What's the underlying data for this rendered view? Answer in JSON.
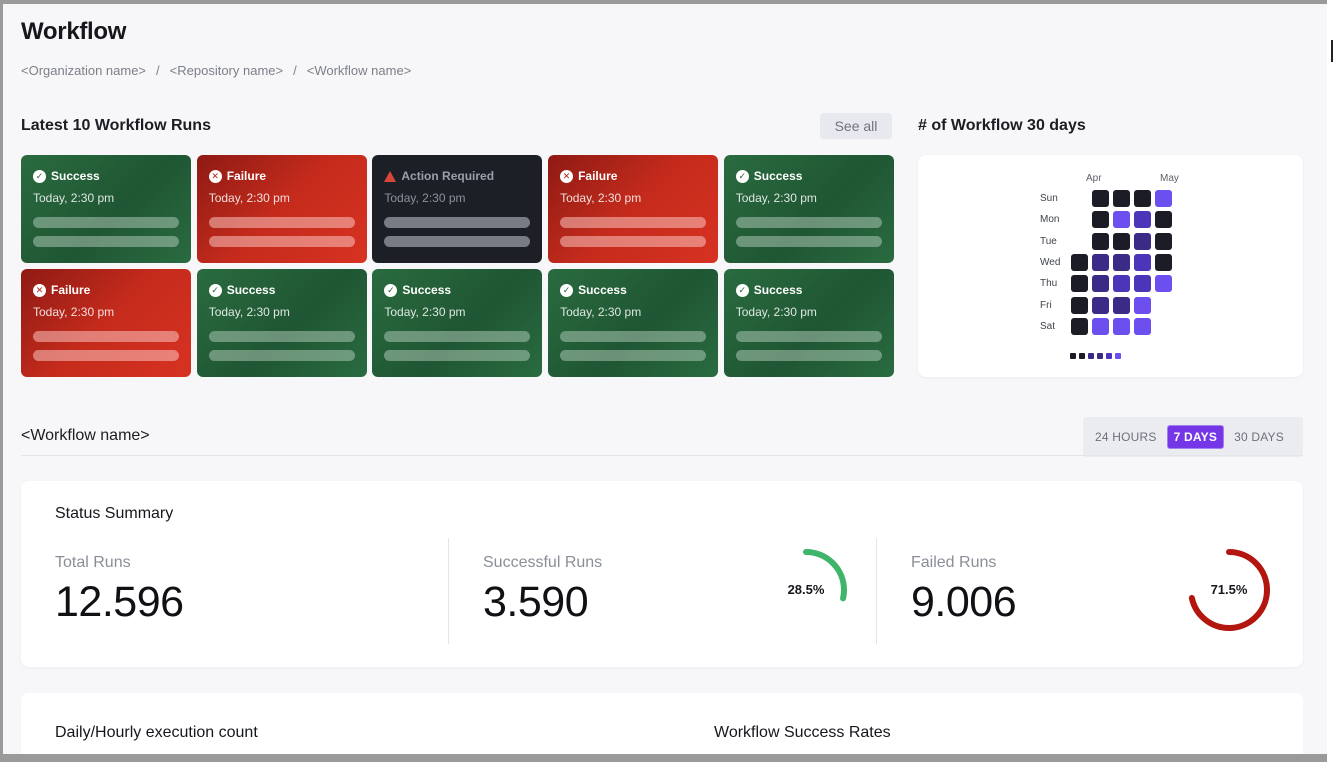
{
  "page": {
    "title": "Workflow"
  },
  "breadcrumb": [
    "<Organization name>",
    "<Repository name>",
    "<Workflow name>"
  ],
  "latest_runs": {
    "title": "Latest 10 Workflow Runs",
    "see_all": "See all",
    "runs": [
      {
        "status": "Success",
        "kind": "success",
        "time": "Today, 2:30 pm"
      },
      {
        "status": "Failure",
        "kind": "failure",
        "time": "Today, 2:30 pm"
      },
      {
        "status": "Action Required",
        "kind": "action",
        "time": "Today, 2:30 pm"
      },
      {
        "status": "Failure",
        "kind": "failure",
        "time": "Today, 2:30 pm"
      },
      {
        "status": "Success",
        "kind": "success",
        "time": "Today, 2:30 pm"
      },
      {
        "status": "Failure",
        "kind": "failure",
        "time": "Today, 2:30 pm"
      },
      {
        "status": "Success",
        "kind": "success",
        "time": "Today, 2:30 pm"
      },
      {
        "status": "Success",
        "kind": "success",
        "time": "Today, 2:30 pm"
      },
      {
        "status": "Success",
        "kind": "success",
        "time": "Today, 2:30 pm"
      },
      {
        "status": "Success",
        "kind": "success",
        "time": "Today, 2:30 pm"
      }
    ]
  },
  "heatmap": {
    "title": "# of Workflow 30 days",
    "months": [
      "Apr",
      "May"
    ],
    "days": [
      "Sun",
      "Mon",
      "Tue",
      "Wed",
      "Thu",
      "Fri",
      "Sat"
    ],
    "levels": [
      [
        null,
        0,
        0,
        0,
        3
      ],
      [
        null,
        0,
        3,
        2,
        0
      ],
      [
        null,
        0,
        0,
        1,
        0
      ],
      [
        0,
        1,
        1,
        2,
        0
      ],
      [
        0,
        1,
        2,
        2,
        3
      ],
      [
        0,
        1,
        1,
        3,
        null
      ],
      [
        0,
        3,
        3,
        3,
        null
      ]
    ],
    "palette": [
      "#1b1c26",
      "#3b2a86",
      "#4c35b8",
      "#6d4ff0"
    ]
  },
  "workflow_section": {
    "title": "<Workflow name>",
    "ranges": [
      "24 HOURS",
      "7 DAYS",
      "30 DAYS"
    ],
    "active_range": "7 DAYS"
  },
  "status_summary": {
    "title": "Status Summary",
    "total": {
      "label": "Total Runs",
      "value": "12.596"
    },
    "successful": {
      "label": "Successful Runs",
      "value": "3.590",
      "percent_label": "28.5%",
      "percent": 28.5,
      "color": "#3fb56c"
    },
    "failed": {
      "label": "Failed Runs",
      "value": "9.006",
      "percent_label": "71.5%",
      "percent": 71.5,
      "color": "#b3160f"
    }
  },
  "bottom": {
    "left_title": "Daily/Hourly execution count",
    "right_title": "Workflow Success Rates"
  }
}
